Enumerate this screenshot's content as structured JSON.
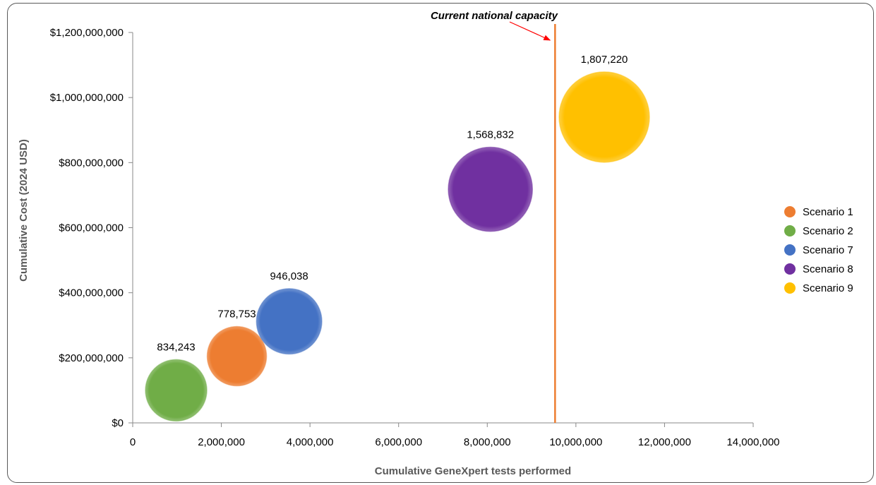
{
  "chart_data": {
    "type": "bubble",
    "xlabel": "Cumulative GeneXpert tests performed",
    "ylabel": "Cumulative Cost (2024 USD)",
    "xlim": [
      0,
      14000000
    ],
    "ylim": [
      0,
      1200000000
    ],
    "x_ticks": [
      0,
      2000000,
      4000000,
      6000000,
      8000000,
      10000000,
      12000000,
      14000000
    ],
    "x_tick_labels": [
      "0",
      "2,000,000",
      "4,000,000",
      "6,000,000",
      "8,000,000",
      "10,000,000",
      "12,000,000",
      "14,000,000"
    ],
    "y_ticks": [
      0,
      200000000,
      400000000,
      600000000,
      800000000,
      1000000000,
      1200000000
    ],
    "y_tick_labels": [
      "$0",
      "$200,000,000",
      "$400,000,000",
      "$600,000,000",
      "$800,000,000",
      "$1,000,000,000",
      "$1,200,000,000"
    ],
    "grid": false,
    "legend_position": "right",
    "series": [
      {
        "name": "Scenario 1",
        "x": 2350000,
        "y": 205000000,
        "size": 778753,
        "label": "778,753",
        "color": "#ED7D31"
      },
      {
        "name": "Scenario 2",
        "x": 980000,
        "y": 100000000,
        "size": 834243,
        "label": "834,243",
        "color": "#70AD47"
      },
      {
        "name": "Scenario 7",
        "x": 3530000,
        "y": 312000000,
        "size": 946038,
        "label": "946,038",
        "color": "#4472C4"
      },
      {
        "name": "Scenario 8",
        "x": 8070000,
        "y": 718000000,
        "size": 1568832,
        "label": "1,568,832",
        "color": "#7030A0"
      },
      {
        "name": "Scenario 9",
        "x": 10640000,
        "y": 940000000,
        "size": 1807220,
        "label": "1,807,220",
        "color": "#FFC000"
      }
    ],
    "reference_line": {
      "x": 9530000,
      "label": "Current national capacity",
      "color": "#ED7D31",
      "arrow_color": "#FF0000"
    }
  }
}
